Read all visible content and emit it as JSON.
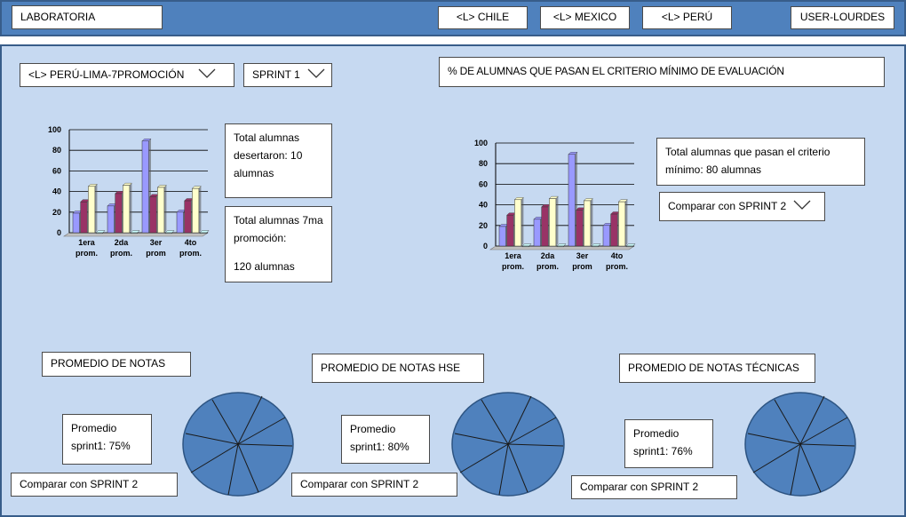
{
  "header": {
    "title": "LABORATORIA",
    "countries": [
      "<L> CHILE",
      "<L> MEXICO",
      "<L> PERÚ"
    ],
    "user": "USER-LOURDES"
  },
  "filters": {
    "cohort": "<L> PERÚ-LIMA-7PROMOCIÓN",
    "sprint": "SPRINT 1"
  },
  "left_panel": {
    "dropouts_text": "Total alumnas desertaron: 10 alumnas",
    "total_line1": "Total alumnas 7ma promoción:",
    "total_line2": "120 alumnas"
  },
  "right_panel": {
    "title": "% DE ALUMNAS QUE PASAN EL CRITERIO MÍNIMO DE EVALUACIÓN",
    "pass_text": "Total alumnas que pasan el criterio mínimo: 80 alumnas",
    "compare": "Comparar con SPRINT 2"
  },
  "averages": [
    {
      "title": "PROMEDIO DE NOTAS",
      "value": "Promedio sprint1: 75%",
      "compare": "Comparar con SPRINT 2"
    },
    {
      "title": "PROMEDIO DE NOTAS HSE",
      "value": "Promedio sprint1: 80%",
      "compare": "Comparar con SPRINT 2"
    },
    {
      "title": "PROMEDIO DE NOTAS TÉCNICAS",
      "value": "Promedio sprint1: 76%",
      "compare": "Comparar con SPRINT 2"
    }
  ],
  "colors": {
    "header": "#4f81bd",
    "main": "#c6d9f1",
    "series": [
      "#9999ff",
      "#993366",
      "#ffffcc",
      "#ccffff"
    ],
    "pie": "#4f81bd"
  },
  "chart_data": [
    {
      "type": "bar",
      "categories": [
        "1era prom.",
        "2da prom.",
        "3er prom",
        "4to prom."
      ],
      "series": [
        {
          "values": [
            19,
            26,
            89,
            20
          ]
        },
        {
          "values": [
            30,
            38,
            35,
            31
          ]
        },
        {
          "values": [
            45,
            46,
            44,
            43
          ]
        },
        {
          "values": [
            0,
            0,
            0,
            0
          ]
        }
      ],
      "ylim": [
        0,
        100
      ],
      "yticks": [
        "0",
        "20",
        "40",
        "60",
        "80",
        "100"
      ],
      "grid": true
    },
    {
      "type": "bar",
      "categories": [
        "1era prom.",
        "2da prom.",
        "3er prom",
        "4to prom."
      ],
      "series": [
        {
          "values": [
            19,
            26,
            89,
            20
          ]
        },
        {
          "values": [
            30,
            38,
            35,
            31
          ]
        },
        {
          "values": [
            45,
            46,
            44,
            43
          ]
        },
        {
          "values": [
            0,
            0,
            0,
            0
          ]
        }
      ],
      "ylim": [
        0,
        100
      ],
      "yticks": [
        "0",
        "20",
        "40",
        "60",
        "80",
        "100"
      ],
      "grid": true
    }
  ]
}
